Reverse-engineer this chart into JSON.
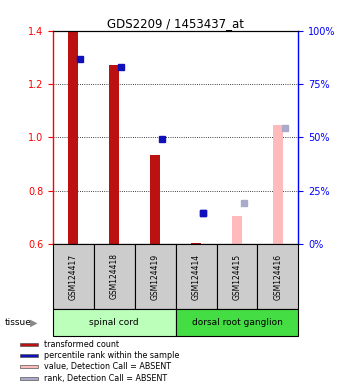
{
  "title": "GDS2209 / 1453437_at",
  "samples": [
    "GSM124417",
    "GSM124418",
    "GSM124419",
    "GSM124414",
    "GSM124415",
    "GSM124416"
  ],
  "tissue_groups": [
    {
      "label": "spinal cord",
      "samples": [
        0,
        1,
        2
      ],
      "color": "#bbffbb"
    },
    {
      "label": "dorsal root ganglion",
      "samples": [
        3,
        4,
        5
      ],
      "color": "#44dd44"
    }
  ],
  "red_values": [
    1.395,
    1.27,
    0.935,
    0.605,
    null,
    null
  ],
  "blue_values": [
    1.295,
    1.265,
    0.995,
    0.715,
    null,
    null
  ],
  "pink_values": [
    null,
    null,
    null,
    null,
    0.705,
    1.045
  ],
  "lavender_values": [
    null,
    null,
    null,
    null,
    0.755,
    1.035
  ],
  "blue_absent_values": [
    null,
    null,
    null,
    0.715,
    null,
    null
  ],
  "ylim": [
    0.6,
    1.4
  ],
  "y_ticks_left": [
    0.6,
    0.8,
    1.0,
    1.2,
    1.4
  ],
  "y_ticks_right_pct": [
    0,
    25,
    50,
    75,
    100
  ],
  "bar_width": 0.25,
  "red_color": "#bb1111",
  "blue_color": "#1111bb",
  "pink_color": "#ffbbbb",
  "lavender_color": "#aaaacc",
  "bg_sample": "#cccccc",
  "spinal_cord_color": "#bbffbb",
  "dorsal_color": "#44dd44"
}
